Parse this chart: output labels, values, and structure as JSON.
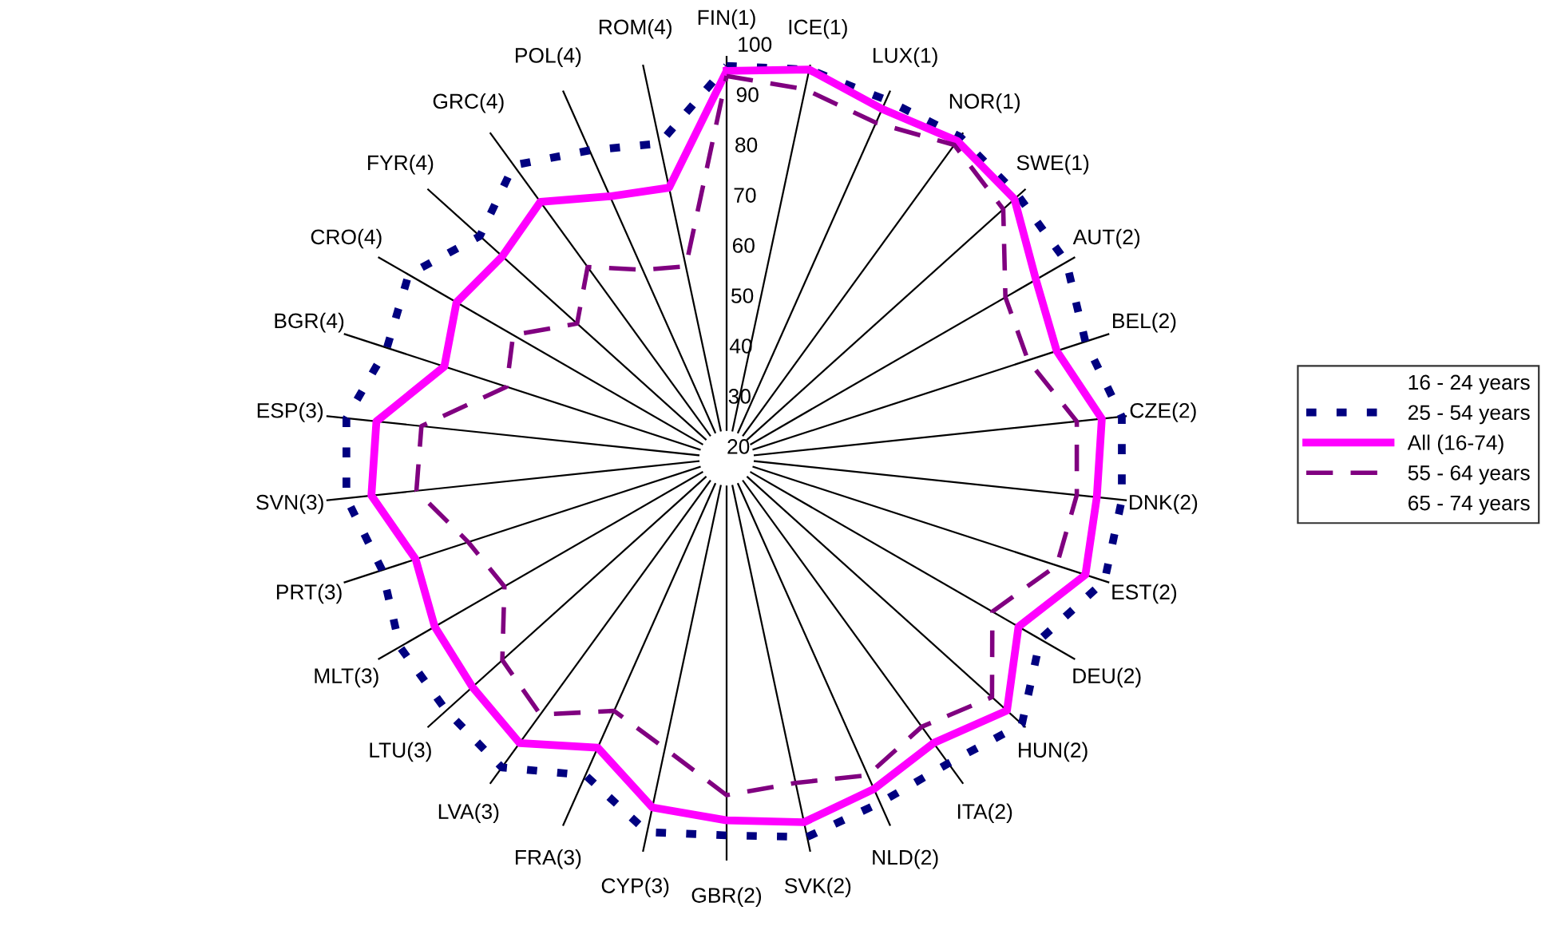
{
  "chart_data": {
    "type": "radar",
    "categories": [
      "FIN(1)",
      "ICE(1)",
      "LUX(1)",
      "NOR(1)",
      "SWE(1)",
      "AUT(2)",
      "BEL(2)",
      "CZE(2)",
      "DNK(2)",
      "EST(2)",
      "DEU(2)",
      "HUN(2)",
      "ITA(2)",
      "NLD(2)",
      "SVK(2)",
      "GBR(2)",
      "CYP(3)",
      "FRA(3)",
      "LVA(3)",
      "LTU(3)",
      "MLT(3)",
      "PRT(3)",
      "SVN(3)",
      "ESP(3)",
      "BGR(4)",
      "CRO(4)",
      "FYR(4)",
      "GRC(4)",
      "POL(4)",
      "ROM(4)"
    ],
    "ylim": [
      20,
      100
    ],
    "yticks": [
      20,
      30,
      40,
      50,
      60,
      70,
      80,
      90,
      100
    ],
    "grid": "x",
    "legend": "right",
    "series": [
      {
        "name": "16 - 24 years",
        "color": null,
        "line_style": "none",
        "values": [
          null,
          null,
          null,
          null,
          null,
          null,
          null,
          null,
          null,
          null,
          null,
          null,
          null,
          null,
          null,
          null,
          null,
          null,
          null,
          null,
          null,
          null,
          null,
          null,
          null,
          null,
          null,
          null,
          null,
          null
        ]
      },
      {
        "name": "25 - 54 years",
        "color": "#000080",
        "line_style": "dotted",
        "values": [
          98,
          99,
          98,
          99,
          98,
          98,
          95,
          99,
          99,
          99,
          92,
          99,
          95,
          95,
          97,
          95,
          96,
          89,
          96,
          95,
          95,
          92,
          96,
          96,
          91,
          93,
          86,
          92,
          87,
          84
        ]
      },
      {
        "name": "All (16-74)",
        "color": "#ff00ff",
        "line_style": "solid",
        "values": [
          97,
          99,
          96,
          98,
          97,
          91,
          89,
          95,
          94,
          95,
          87,
          95,
          90,
          92,
          94,
          92,
          91,
          83,
          90,
          88,
          87,
          85,
          91,
          90,
          79,
          82,
          80,
          83,
          77,
          75
        ]
      },
      {
        "name": "55 - 64 years",
        "color": "#800080",
        "line_style": "dashed",
        "values": [
          96,
          95,
          93,
          97,
          94,
          84,
          83,
          90,
          90,
          89,
          81,
          91,
          86,
          89,
          86,
          87,
          79,
          75,
          83,
          80,
          71,
          74,
          82,
          81,
          66,
          69,
          60,
          67,
          61,
          59
        ]
      },
      {
        "name": "65 - 74 years",
        "color": null,
        "line_style": "none",
        "values": [
          null,
          null,
          null,
          null,
          null,
          null,
          null,
          null,
          null,
          null,
          null,
          null,
          null,
          null,
          null,
          null,
          null,
          null,
          null,
          null,
          null,
          null,
          null,
          null,
          null,
          null,
          null,
          null,
          null,
          null
        ]
      }
    ]
  }
}
